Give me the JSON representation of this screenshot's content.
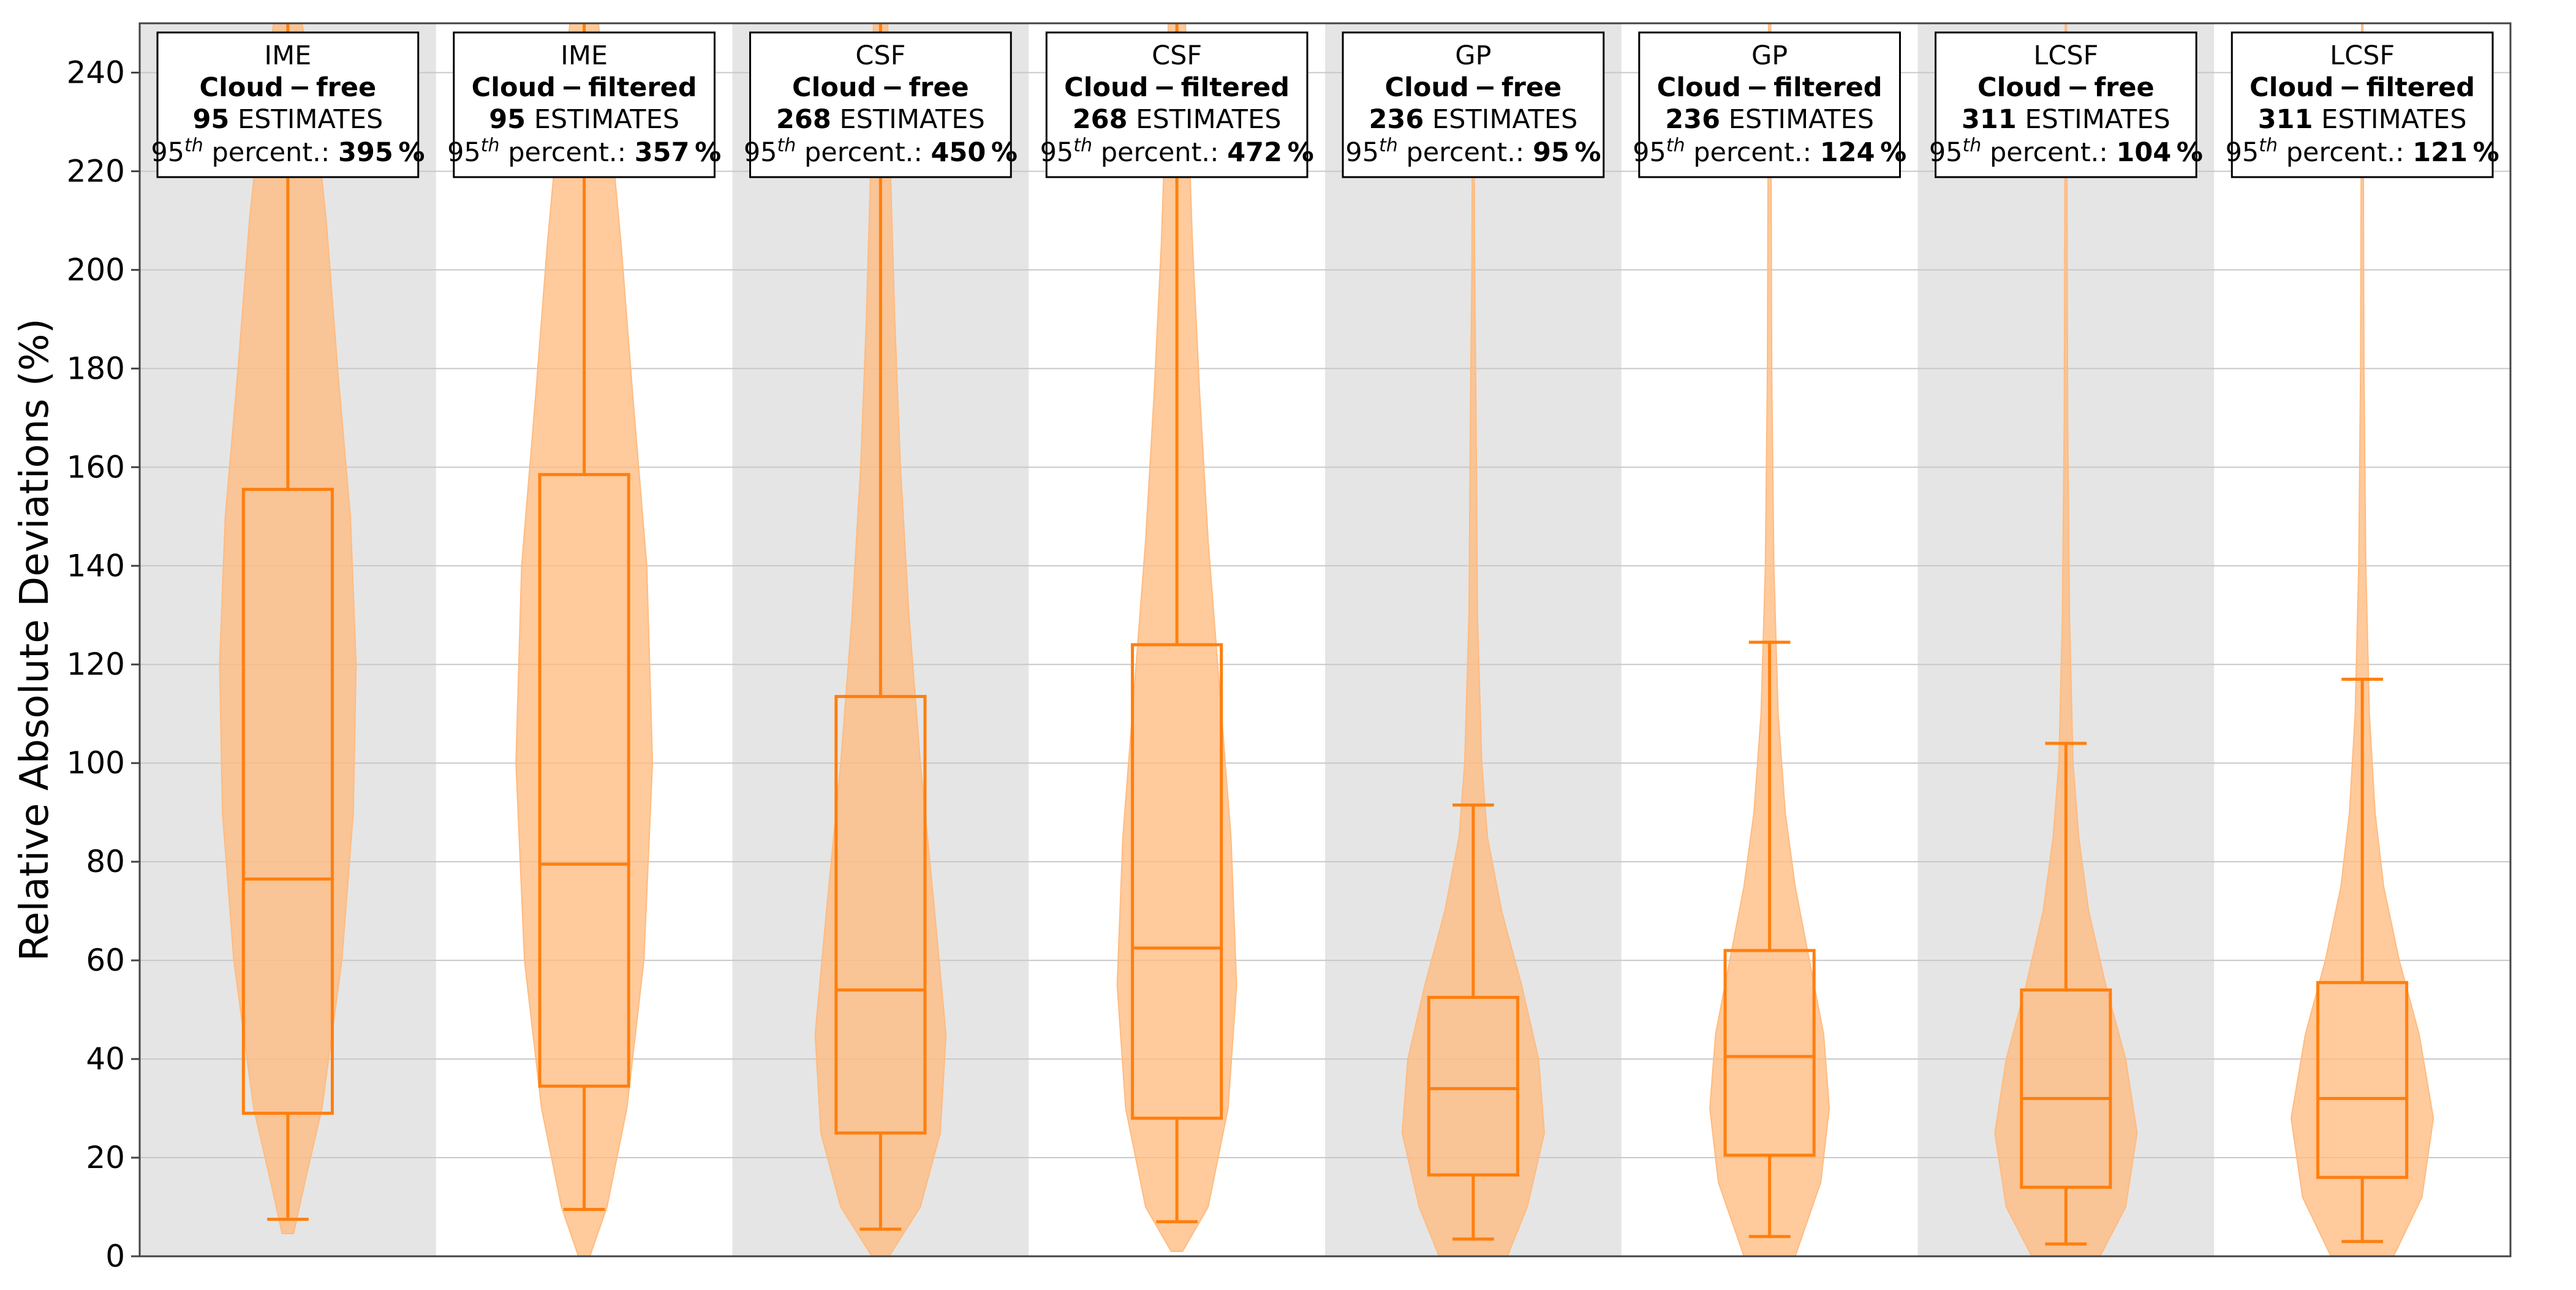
{
  "chart_data": {
    "type": "violin+box",
    "ylabel": "Relative Absolute Deviations (%)",
    "ylim": [
      0,
      250
    ],
    "yticks": [
      0,
      20,
      40,
      60,
      80,
      100,
      120,
      140,
      160,
      180,
      200,
      220,
      240
    ],
    "grid": true,
    "colors": {
      "fill": "#ffbb80",
      "line": "#ff7f0e",
      "shade": "#e5e5e5"
    },
    "groups": [
      {
        "method": "IME",
        "dataset": "Cloud − free",
        "n": "95",
        "estimates_label": "ESTIMATES",
        "percentile_label_pre": "95",
        "percentile_sup": "th",
        "percentile_label_post": " percent.: ",
        "percentile_value": "395 %",
        "shaded": true,
        "box": {
          "whislo": 7.5,
          "q1": 29,
          "med": 76.5,
          "q3": 155.5,
          "whishi": 260
        },
        "violin": [
          [
            4.6,
            0.04
          ],
          [
            15,
            0.12
          ],
          [
            30,
            0.24
          ],
          [
            60,
            0.38
          ],
          [
            90,
            0.46
          ],
          [
            120,
            0.48
          ],
          [
            150,
            0.44
          ],
          [
            180,
            0.35
          ],
          [
            210,
            0.27
          ],
          [
            235,
            0.18
          ],
          [
            250,
            0.1
          ]
        ]
      },
      {
        "method": "IME",
        "dataset": "Cloud − filtered",
        "n": "95",
        "estimates_label": "ESTIMATES",
        "percentile_label_pre": "95",
        "percentile_sup": "th",
        "percentile_label_post": " percent.: ",
        "percentile_value": "357 %",
        "shaded": false,
        "box": {
          "whislo": 9.5,
          "q1": 34.5,
          "med": 79.5,
          "q3": 158.5,
          "whishi": 260
        },
        "violin": [
          [
            0,
            0.04
          ],
          [
            10,
            0.16
          ],
          [
            30,
            0.3
          ],
          [
            60,
            0.42
          ],
          [
            100,
            0.48
          ],
          [
            140,
            0.44
          ],
          [
            175,
            0.34
          ],
          [
            205,
            0.26
          ],
          [
            230,
            0.18
          ],
          [
            250,
            0.1
          ]
        ]
      },
      {
        "method": "CSF",
        "dataset": "Cloud − free",
        "n": "268",
        "estimates_label": "ESTIMATES",
        "percentile_label_pre": "95",
        "percentile_sup": "th",
        "percentile_label_post": " percent.: ",
        "percentile_value": "450 %",
        "shaded": true,
        "box": {
          "whislo": 5.5,
          "q1": 25,
          "med": 54,
          "q3": 113.5,
          "whishi": 260
        },
        "violin": [
          [
            0,
            0.06
          ],
          [
            10,
            0.28
          ],
          [
            25,
            0.42
          ],
          [
            45,
            0.46
          ],
          [
            70,
            0.38
          ],
          [
            100,
            0.28
          ],
          [
            130,
            0.2
          ],
          [
            160,
            0.14
          ],
          [
            190,
            0.1
          ],
          [
            220,
            0.07
          ],
          [
            250,
            0.05
          ]
        ]
      },
      {
        "method": "CSF",
        "dataset": "Cloud − filtered",
        "n": "268",
        "estimates_label": "ESTIMATES",
        "percentile_label_pre": "95",
        "percentile_sup": "th",
        "percentile_label_post": " percent.: ",
        "percentile_value": "472 %",
        "shaded": false,
        "box": {
          "whislo": 7,
          "q1": 28,
          "med": 62.5,
          "q3": 124,
          "whishi": 260
        },
        "violin": [
          [
            1,
            0.04
          ],
          [
            10,
            0.22
          ],
          [
            30,
            0.36
          ],
          [
            55,
            0.42
          ],
          [
            85,
            0.38
          ],
          [
            115,
            0.3
          ],
          [
            145,
            0.22
          ],
          [
            175,
            0.16
          ],
          [
            205,
            0.11
          ],
          [
            230,
            0.08
          ],
          [
            250,
            0.06
          ]
        ]
      },
      {
        "method": "GP",
        "dataset": "Cloud − free",
        "n": "236",
        "estimates_label": "ESTIMATES",
        "percentile_label_pre": "95",
        "percentile_sup": "th",
        "percentile_label_post": " percent.: ",
        "percentile_value": "95 %",
        "shaded": true,
        "box": {
          "whislo": 3.5,
          "q1": 16.5,
          "med": 34,
          "q3": 52.5,
          "whishi": 91.5
        },
        "violin": [
          [
            0,
            0.24
          ],
          [
            10,
            0.38
          ],
          [
            25,
            0.5
          ],
          [
            40,
            0.46
          ],
          [
            55,
            0.34
          ],
          [
            70,
            0.2
          ],
          [
            85,
            0.1
          ],
          [
            100,
            0.06
          ],
          [
            130,
            0.03
          ],
          [
            170,
            0.02
          ],
          [
            200,
            0.01
          ],
          [
            240,
            0.005
          ]
        ]
      },
      {
        "method": "GP",
        "dataset": "Cloud − filtered",
        "n": "236",
        "estimates_label": "ESTIMATES",
        "percentile_label_pre": "95",
        "percentile_sup": "th",
        "percentile_label_post": " percent.: ",
        "percentile_value": "124 %",
        "shaded": false,
        "box": {
          "whislo": 4,
          "q1": 20.5,
          "med": 40.5,
          "q3": 62,
          "whishi": 124.5
        },
        "violin": [
          [
            0,
            0.18
          ],
          [
            15,
            0.36
          ],
          [
            30,
            0.42
          ],
          [
            45,
            0.38
          ],
          [
            60,
            0.28
          ],
          [
            75,
            0.18
          ],
          [
            90,
            0.11
          ],
          [
            110,
            0.06
          ],
          [
            140,
            0.03
          ],
          [
            180,
            0.015
          ],
          [
            250,
            0.008
          ]
        ]
      },
      {
        "method": "LCSF",
        "dataset": "Cloud − free",
        "n": "311",
        "estimates_label": "ESTIMATES",
        "percentile_label_pre": "95",
        "percentile_sup": "th",
        "percentile_label_post": " percent.: ",
        "percentile_value": "104 %",
        "shaded": true,
        "box": {
          "whislo": 2.5,
          "q1": 14,
          "med": 32,
          "q3": 54,
          "whishi": 104
        },
        "violin": [
          [
            0,
            0.24
          ],
          [
            10,
            0.42
          ],
          [
            25,
            0.5
          ],
          [
            40,
            0.42
          ],
          [
            55,
            0.28
          ],
          [
            70,
            0.16
          ],
          [
            85,
            0.09
          ],
          [
            100,
            0.05
          ],
          [
            130,
            0.025
          ],
          [
            170,
            0.012
          ],
          [
            250,
            0.005
          ]
        ]
      },
      {
        "method": "LCSF",
        "dataset": "Cloud − filtered",
        "n": "311",
        "estimates_label": "ESTIMATES",
        "percentile_label_pre": "95",
        "percentile_sup": "th",
        "percentile_label_post": " percent.: ",
        "percentile_value": "121 %",
        "shaded": false,
        "box": {
          "whislo": 3,
          "q1": 16,
          "med": 32,
          "q3": 55.5,
          "whishi": 117
        },
        "violin": [
          [
            0,
            0.22
          ],
          [
            12,
            0.42
          ],
          [
            28,
            0.5
          ],
          [
            45,
            0.4
          ],
          [
            60,
            0.26
          ],
          [
            75,
            0.15
          ],
          [
            90,
            0.09
          ],
          [
            110,
            0.05
          ],
          [
            140,
            0.025
          ],
          [
            180,
            0.012
          ],
          [
            250,
            0.005
          ]
        ]
      }
    ]
  }
}
